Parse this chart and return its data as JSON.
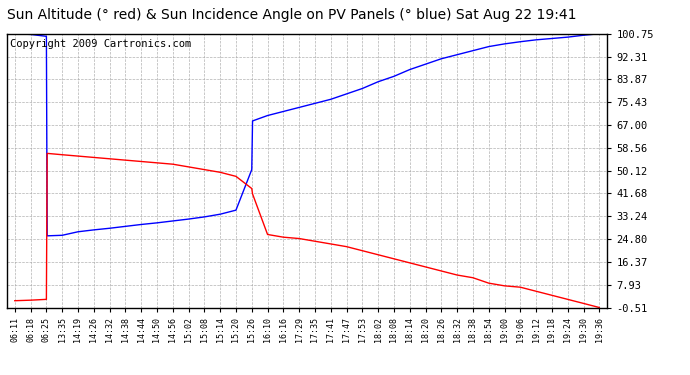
{
  "title": "Sun Altitude (° red) & Sun Incidence Angle on PV Panels (° blue) Sat Aug 22 19:41",
  "copyright": "Copyright 2009 Cartronics.com",
  "yticks": [
    100.75,
    92.31,
    83.87,
    75.43,
    67.0,
    58.56,
    50.12,
    41.68,
    33.24,
    24.8,
    16.37,
    7.93,
    -0.51
  ],
  "ylim": [
    -0.51,
    100.75
  ],
  "xtick_labels": [
    "06:11",
    "06:18",
    "06:25",
    "13:35",
    "14:19",
    "14:26",
    "14:32",
    "14:38",
    "14:44",
    "14:50",
    "14:56",
    "15:02",
    "15:08",
    "15:14",
    "15:20",
    "15:26",
    "16:10",
    "16:16",
    "17:29",
    "17:35",
    "17:41",
    "17:47",
    "17:53",
    "18:02",
    "18:08",
    "18:14",
    "18:20",
    "18:26",
    "18:32",
    "18:38",
    "18:54",
    "19:00",
    "19:06",
    "19:12",
    "19:18",
    "19:24",
    "19:30",
    "19:36"
  ],
  "blue_data": [
    [
      0,
      100.75
    ],
    [
      1,
      100.5
    ],
    [
      2,
      99.8
    ],
    [
      2.05,
      26.0
    ],
    [
      3,
      26.2
    ],
    [
      4,
      27.5
    ],
    [
      5,
      28.2
    ],
    [
      6,
      28.8
    ],
    [
      7,
      29.5
    ],
    [
      8,
      30.2
    ],
    [
      9,
      30.8
    ],
    [
      10,
      31.5
    ],
    [
      11,
      32.2
    ],
    [
      12,
      33.0
    ],
    [
      13,
      34.0
    ],
    [
      14,
      35.5
    ],
    [
      15,
      50.5
    ],
    [
      15.05,
      68.5
    ],
    [
      16,
      70.5
    ],
    [
      17,
      72.0
    ],
    [
      18,
      73.5
    ],
    [
      19,
      75.0
    ],
    [
      20,
      76.5
    ],
    [
      21,
      78.5
    ],
    [
      22,
      80.5
    ],
    [
      23,
      83.0
    ],
    [
      24,
      85.0
    ],
    [
      25,
      87.5
    ],
    [
      26,
      89.5
    ],
    [
      27,
      91.5
    ],
    [
      28,
      93.0
    ],
    [
      29,
      94.5
    ],
    [
      30,
      96.0
    ],
    [
      31,
      97.0
    ],
    [
      32,
      97.8
    ],
    [
      33,
      98.5
    ],
    [
      34,
      99.0
    ],
    [
      35,
      99.5
    ],
    [
      36,
      100.2
    ],
    [
      37,
      100.75
    ]
  ],
  "red_data": [
    [
      0,
      2.0
    ],
    [
      1,
      2.2
    ],
    [
      2,
      2.5
    ],
    [
      2.05,
      56.5
    ],
    [
      3,
      56.0
    ],
    [
      4,
      55.5
    ],
    [
      5,
      55.0
    ],
    [
      6,
      54.5
    ],
    [
      7,
      54.0
    ],
    [
      8,
      53.5
    ],
    [
      9,
      53.0
    ],
    [
      10,
      52.5
    ],
    [
      11,
      51.5
    ],
    [
      12,
      50.5
    ],
    [
      13,
      49.5
    ],
    [
      14,
      48.0
    ],
    [
      15,
      43.5
    ],
    [
      15.05,
      41.5
    ],
    [
      16,
      26.5
    ],
    [
      17,
      25.5
    ],
    [
      18,
      25.0
    ],
    [
      19,
      24.0
    ],
    [
      20,
      23.0
    ],
    [
      21,
      22.0
    ],
    [
      22,
      20.5
    ],
    [
      23,
      19.0
    ],
    [
      24,
      17.5
    ],
    [
      25,
      16.0
    ],
    [
      26,
      14.5
    ],
    [
      27,
      13.0
    ],
    [
      28,
      11.5
    ],
    [
      29,
      10.5
    ],
    [
      30,
      8.5
    ],
    [
      31,
      7.5
    ],
    [
      32,
      7.0
    ],
    [
      33,
      5.5
    ],
    [
      34,
      4.0
    ],
    [
      35,
      2.5
    ],
    [
      36,
      1.0
    ],
    [
      37,
      -0.51
    ]
  ],
  "blue_color": "#0000FF",
  "red_color": "#FF0000",
  "bg_color": "#FFFFFF",
  "grid_color": "#AAAAAA",
  "title_fontsize": 10,
  "copyright_fontsize": 7.5
}
